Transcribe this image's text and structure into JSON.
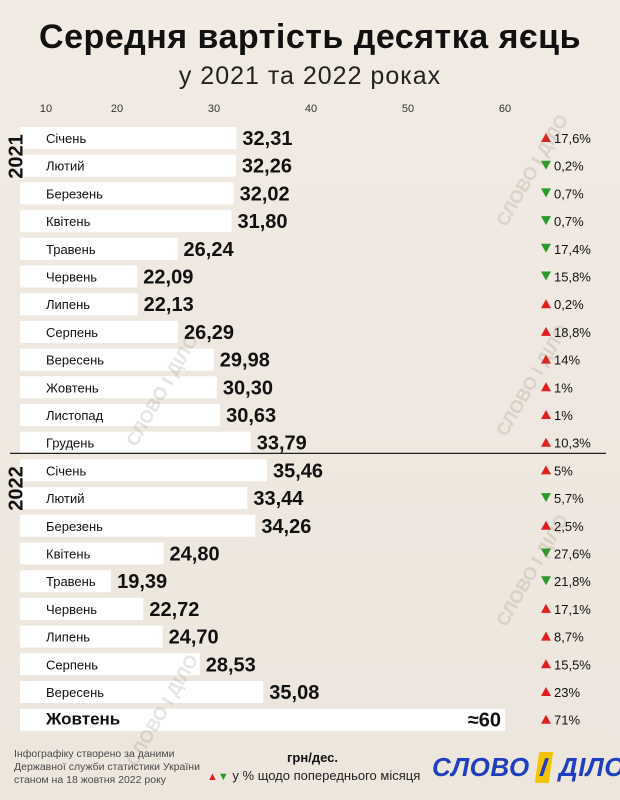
{
  "title": "Середня вартість десятка яєць",
  "subtitle": "у 2021 та 2022 роках",
  "unit_label": "грн/дес.",
  "legend_text": "у % щодо попереднього місяця",
  "footer_note": "Інфографіку створено за даними Державної служби статистики України станом на 18 жовтня 2022 року",
  "logo": {
    "left": "СЛОВО",
    "mid": "І",
    "right": "ДІЛО"
  },
  "watermark": "СЛОВО І ДІЛО",
  "colors": {
    "up": "#e02020",
    "down": "#2a9a2a",
    "bar": "#ffffff"
  },
  "chart_data": {
    "type": "bar",
    "orientation": "horizontal",
    "x_ticks": [
      10,
      20,
      30,
      40,
      50,
      60
    ],
    "xlim": [
      10,
      70
    ],
    "groups": [
      {
        "year": "2021",
        "rows": [
          {
            "month": "Січень",
            "value": 32.31,
            "label": "32,31",
            "change": "17,6%",
            "dir": "up"
          },
          {
            "month": "Лютий",
            "value": 32.26,
            "label": "32,26",
            "change": "0,2%",
            "dir": "down"
          },
          {
            "month": "Березень",
            "value": 32.02,
            "label": "32,02",
            "change": "0,7%",
            "dir": "down"
          },
          {
            "month": "Квітень",
            "value": 31.8,
            "label": "31,80",
            "change": "0,7%",
            "dir": "down"
          },
          {
            "month": "Травень",
            "value": 26.24,
            "label": "26,24",
            "change": "17,4%",
            "dir": "down"
          },
          {
            "month": "Червень",
            "value": 22.09,
            "label": "22,09",
            "change": "15,8%",
            "dir": "down"
          },
          {
            "month": "Липень",
            "value": 22.13,
            "label": "22,13",
            "change": "0,2%",
            "dir": "up"
          },
          {
            "month": "Серпень",
            "value": 26.29,
            "label": "26,29",
            "change": "18,8%",
            "dir": "up"
          },
          {
            "month": "Вересень",
            "value": 29.98,
            "label": "29,98",
            "change": "14%",
            "dir": "up"
          },
          {
            "month": "Жовтень",
            "value": 30.3,
            "label": "30,30",
            "change": "1%",
            "dir": "up"
          },
          {
            "month": "Листопад",
            "value": 30.63,
            "label": "30,63",
            "change": "1%",
            "dir": "up"
          },
          {
            "month": "Грудень",
            "value": 33.79,
            "label": "33,79",
            "change": "10,3%",
            "dir": "up"
          }
        ]
      },
      {
        "year": "2022",
        "rows": [
          {
            "month": "Січень",
            "value": 35.46,
            "label": "35,46",
            "change": "5%",
            "dir": "up"
          },
          {
            "month": "Лютий",
            "value": 33.44,
            "label": "33,44",
            "change": "5,7%",
            "dir": "down"
          },
          {
            "month": "Березень",
            "value": 34.26,
            "label": "34,26",
            "change": "2,5%",
            "dir": "up"
          },
          {
            "month": "Квітень",
            "value": 24.8,
            "label": "24,80",
            "change": "27,6%",
            "dir": "down"
          },
          {
            "month": "Травень",
            "value": 19.39,
            "label": "19,39",
            "change": "21,8%",
            "dir": "down"
          },
          {
            "month": "Червень",
            "value": 22.72,
            "label": "22,72",
            "change": "17,1%",
            "dir": "up"
          },
          {
            "month": "Липень",
            "value": 24.7,
            "label": "24,70",
            "change": "8,7%",
            "dir": "up"
          },
          {
            "month": "Серпень",
            "value": 28.53,
            "label": "28,53",
            "change": "15,5%",
            "dir": "up"
          },
          {
            "month": "Вересень",
            "value": 35.08,
            "label": "35,08",
            "change": "23%",
            "dir": "up"
          },
          {
            "month": "Жовтень",
            "value": 60,
            "label": "≈60",
            "change": "71%",
            "dir": "up",
            "highlight": true
          }
        ]
      }
    ]
  }
}
